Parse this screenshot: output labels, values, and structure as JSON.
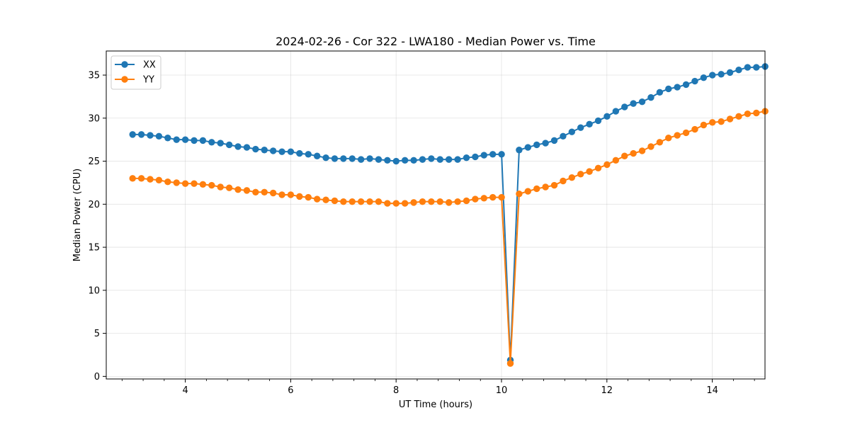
{
  "chart_data": {
    "type": "line",
    "title": "2024-02-26 - Cor 322 - LWA180 - Median Power vs. Time",
    "xlabel": "UT Time (hours)",
    "ylabel": "Median Power (CPU)",
    "xlim": [
      2.5,
      15.0
    ],
    "ylim": [
      -0.3,
      37.8
    ],
    "xticks": [
      4,
      6,
      8,
      10,
      12,
      14
    ],
    "yticks": [
      0,
      5,
      10,
      15,
      20,
      25,
      30,
      35
    ],
    "x_minor_step": 0.4,
    "grid": true,
    "legend_position": "top-left",
    "x_start": 3.0,
    "x_step": 0.1667,
    "series": [
      {
        "name": "XX",
        "color": "#1f77b4",
        "values": [
          28.1,
          28.1,
          28.0,
          27.9,
          27.7,
          27.5,
          27.5,
          27.4,
          27.4,
          27.2,
          27.1,
          26.9,
          26.7,
          26.6,
          26.4,
          26.3,
          26.2,
          26.1,
          26.1,
          25.9,
          25.8,
          25.6,
          25.4,
          25.3,
          25.3,
          25.3,
          25.2,
          25.3,
          25.2,
          25.1,
          25.0,
          25.1,
          25.1,
          25.2,
          25.3,
          25.2,
          25.2,
          25.2,
          25.4,
          25.5,
          25.7,
          25.8,
          25.8,
          1.9,
          26.3,
          26.6,
          26.9,
          27.1,
          27.4,
          27.9,
          28.4,
          28.9,
          29.3,
          29.7,
          30.2,
          30.8,
          31.3,
          31.7,
          31.9,
          32.4,
          33.0,
          33.4,
          33.6,
          33.9,
          34.3,
          34.7,
          35.0,
          35.1,
          35.3,
          35.6,
          35.9,
          35.9,
          36.0
        ]
      },
      {
        "name": "YY",
        "color": "#ff7f0e",
        "values": [
          23.0,
          23.0,
          22.9,
          22.8,
          22.6,
          22.5,
          22.4,
          22.4,
          22.3,
          22.2,
          22.0,
          21.9,
          21.7,
          21.6,
          21.4,
          21.4,
          21.3,
          21.1,
          21.1,
          20.9,
          20.8,
          20.6,
          20.5,
          20.4,
          20.3,
          20.3,
          20.3,
          20.3,
          20.3,
          20.1,
          20.1,
          20.1,
          20.2,
          20.3,
          20.3,
          20.3,
          20.2,
          20.3,
          20.4,
          20.6,
          20.7,
          20.8,
          20.8,
          1.5,
          21.2,
          21.5,
          21.8,
          22.0,
          22.2,
          22.7,
          23.1,
          23.5,
          23.8,
          24.2,
          24.6,
          25.1,
          25.6,
          25.9,
          26.2,
          26.7,
          27.2,
          27.7,
          28.0,
          28.3,
          28.7,
          29.2,
          29.5,
          29.6,
          29.9,
          30.2,
          30.5,
          30.6,
          30.8
        ]
      }
    ]
  }
}
